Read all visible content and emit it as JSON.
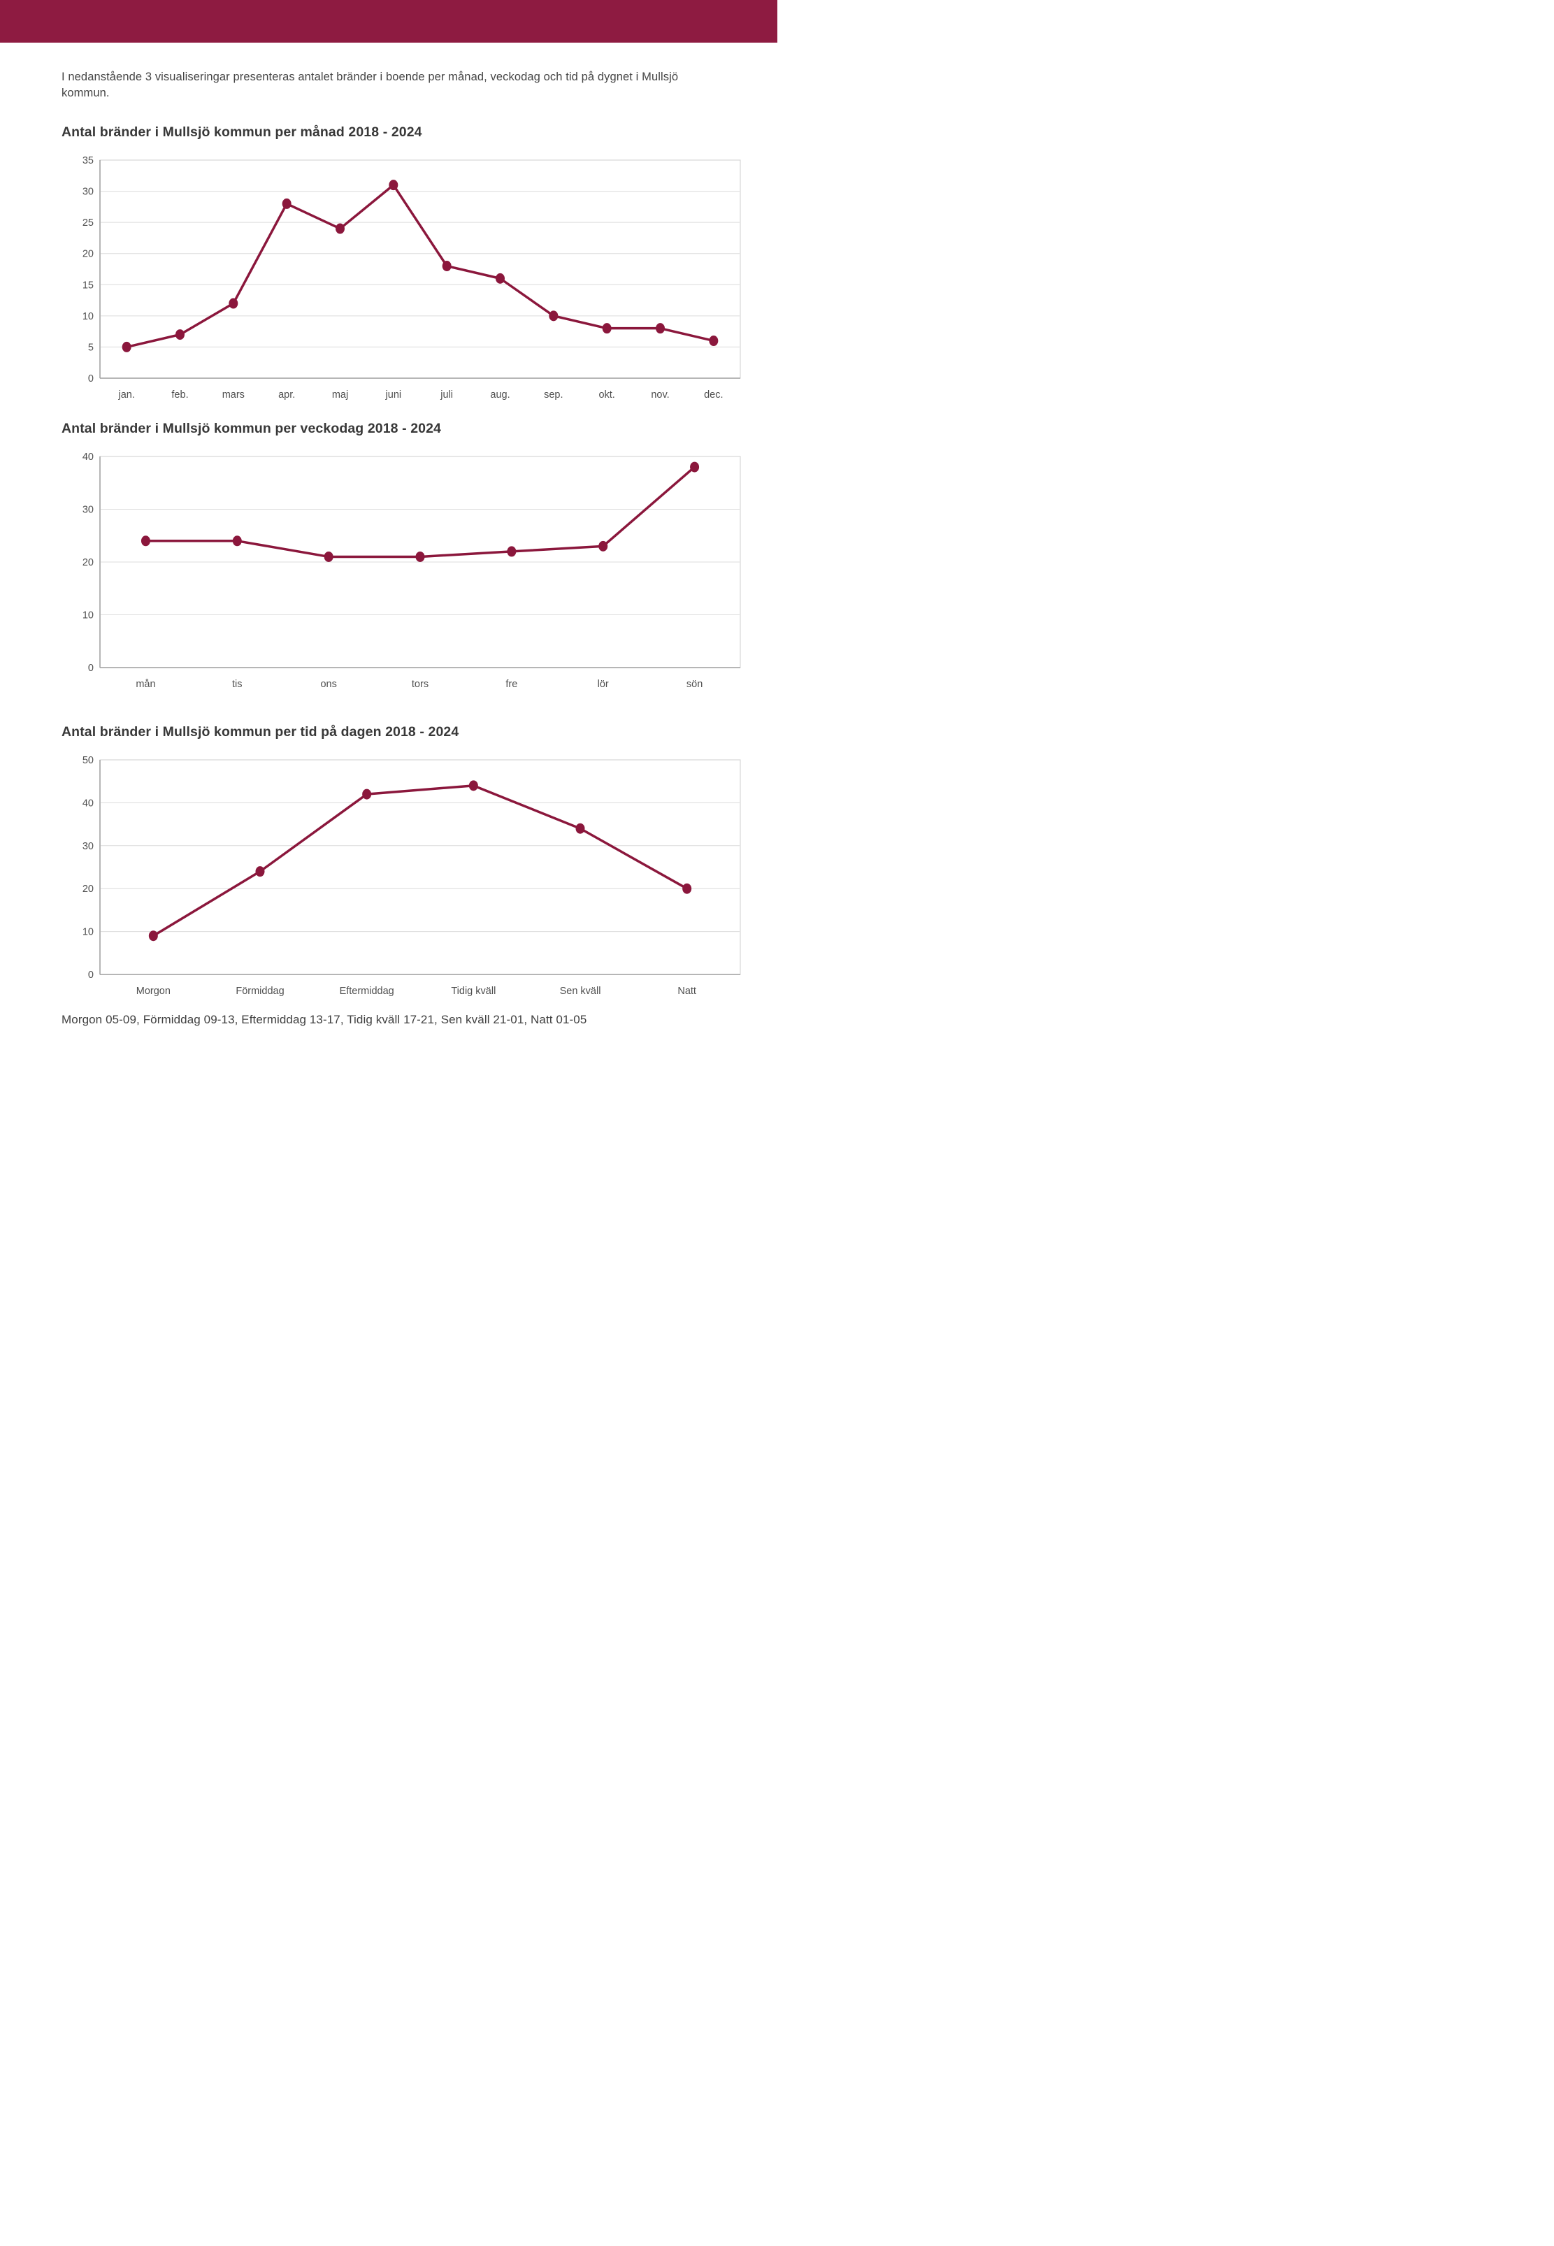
{
  "page": {
    "intro_text": "I nedanstående 3 visualiseringar presenteras antalet bränder i boende per månad, veckodag och tid på dygnet i Mullsjö kommun.",
    "footer_note": "Morgon 05-09, Förmiddag 09-13, Eftermiddag 13-17, Tidig kväll 17-21, Sen kväll 21-01, Natt 01-05"
  },
  "colors": {
    "header_bar": "#8E1B41",
    "line": "#8B173C",
    "grid": "#DCDCDC",
    "plot_border": "#CFCFCF",
    "axis": "#9E9E9E",
    "tick_text": "#4F4F4F"
  },
  "chart_data": [
    {
      "type": "line",
      "title": "Antal bränder i Mullsjö kommun per månad 2018 - 2024",
      "categories": [
        "jan.",
        "feb.",
        "mars",
        "apr.",
        "maj",
        "juni",
        "juli",
        "aug.",
        "sep.",
        "okt.",
        "nov.",
        "dec."
      ],
      "values": [
        5,
        7,
        12,
        28,
        24,
        31,
        18,
        16,
        10,
        8,
        8,
        6
      ],
      "ylim": [
        0,
        35
      ],
      "ytick_step": 5,
      "grid": true,
      "legend": "none"
    },
    {
      "type": "line",
      "title": "Antal bränder i Mullsjö kommun per veckodag 2018 - 2024",
      "categories": [
        "mån",
        "tis",
        "ons",
        "tors",
        "fre",
        "lör",
        "sön"
      ],
      "values": [
        24,
        24,
        21,
        21,
        22,
        23,
        38
      ],
      "ylim": [
        0,
        40
      ],
      "ytick_step": 10,
      "grid": true,
      "legend": "none"
    },
    {
      "type": "line",
      "title": "Antal bränder i Mullsjö kommun per tid på dagen 2018 - 2024",
      "categories": [
        "Morgon",
        "Förmiddag",
        "Eftermiddag",
        "Tidig kväll",
        "Sen kväll",
        "Natt"
      ],
      "values": [
        9,
        24,
        42,
        44,
        34,
        20
      ],
      "ylim": [
        0,
        50
      ],
      "ytick_step": 10,
      "grid": true,
      "legend": "none"
    }
  ]
}
